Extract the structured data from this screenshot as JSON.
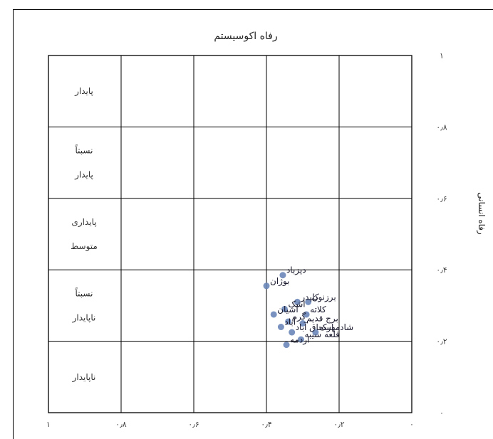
{
  "chart_data": {
    "type": "scatter",
    "title": "رفاه اکوسیستم",
    "ylabel": "رفاه انسانی",
    "xlabel": "",
    "xlim": [
      0,
      1
    ],
    "ylim": [
      0,
      1
    ],
    "x_axis_reversed": true,
    "x_ticks": [
      "۱",
      "۰٫۸",
      "۰٫۶",
      "۰٫۴",
      "۰٫۲",
      "۰"
    ],
    "y_ticks": [
      "۱",
      "۰٫۸",
      "۰٫۶",
      "۰٫۴",
      "۰٫۲",
      "۰"
    ],
    "grid": true,
    "point_color": "#6a86b8",
    "zones": [
      {
        "lines": [
          "پایدار"
        ],
        "ymin": 0.8,
        "ymax": 1.0
      },
      {
        "lines": [
          "نسبتاً",
          "پایدار"
        ],
        "ymin": 0.6,
        "ymax": 0.8
      },
      {
        "lines": [
          "پایداری",
          "متوسط"
        ],
        "ymin": 0.4,
        "ymax": 0.6
      },
      {
        "lines": [
          "نسبتاً",
          "ناپایدار"
        ],
        "ymin": 0.2,
        "ymax": 0.4
      },
      {
        "lines": [
          "ناپایدار"
        ],
        "ymin": 0.0,
        "ymax": 0.2
      }
    ],
    "points": [
      {
        "label": "دیزباد",
        "x": 0.355,
        "y": 0.385
      },
      {
        "label": "بوژان",
        "x": 0.4,
        "y": 0.355
      },
      {
        "label": "برزنون",
        "x": 0.285,
        "y": 0.31
      },
      {
        "label": "کلیدر",
        "x": 0.315,
        "y": 0.31
      },
      {
        "label": "اشک",
        "x": 0.35,
        "y": 0.29
      },
      {
        "label": "آشیان",
        "x": 0.38,
        "y": 0.275
      },
      {
        "label": "کلاته",
        "x": 0.29,
        "y": 0.275
      },
      {
        "label": "گرم",
        "x": 0.34,
        "y": 0.255
      },
      {
        "label": "آباد",
        "x": 0.36,
        "y": 0.24
      },
      {
        "label": "برج قدیم",
        "x": 0.3,
        "y": 0.25
      },
      {
        "label": "شادمهرک",
        "x": 0.265,
        "y": 0.225
      },
      {
        "label": "اسحاق آباد",
        "x": 0.33,
        "y": 0.225
      },
      {
        "label": "قلعه سیبه",
        "x": 0.305,
        "y": 0.205
      },
      {
        "label": "اردمه",
        "x": 0.345,
        "y": 0.19
      }
    ]
  }
}
